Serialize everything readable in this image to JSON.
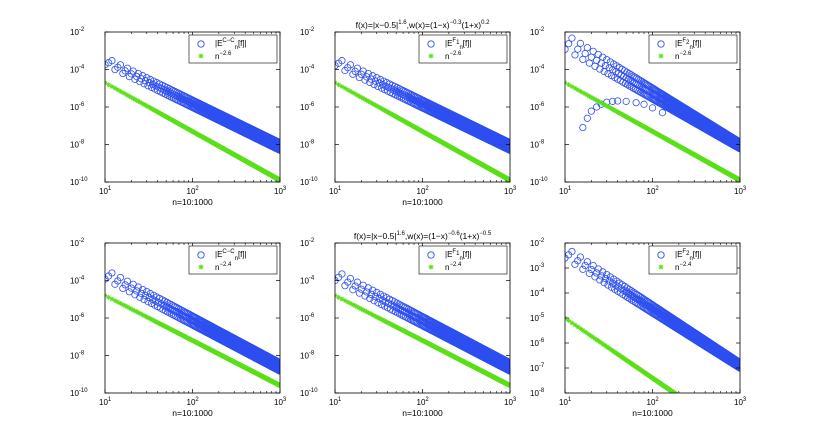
{
  "colors": {
    "series_error": "#2e4ff0",
    "series_rate": "#5be019",
    "axes": "#000000",
    "background": "#ffffff"
  },
  "chart_data": [
    {
      "type": "scatter",
      "row": 0,
      "col": 0,
      "title_parts": [],
      "xlabel": "n=10:1000",
      "x_scale": "log",
      "y_scale": "log",
      "xlim": [
        10,
        1000
      ],
      "ylim": [
        1e-10,
        0.01
      ],
      "x_ticks": [
        {
          "value": 10,
          "base": "10",
          "exp": "1"
        },
        {
          "value": 100,
          "base": "10",
          "exp": "2"
        },
        {
          "value": 1000,
          "base": "10",
          "exp": "3"
        }
      ],
      "y_ticks": [
        {
          "value": 1e-10,
          "base": "10",
          "exp": "-10"
        },
        {
          "value": 1e-08,
          "base": "10",
          "exp": "-8"
        },
        {
          "value": 1e-06,
          "base": "10",
          "exp": "-6"
        },
        {
          "value": 0.0001,
          "base": "10",
          "exp": "-4"
        },
        {
          "value": 0.01,
          "base": "10",
          "exp": "-2"
        }
      ],
      "legend_position": "top-right",
      "series": [
        {
          "name": "|E_n^{C-C}[f]|",
          "label_main": "|E",
          "label_sup": "C−C",
          "label_sub": "n",
          "label_tail": "[f]|",
          "marker": "circle",
          "color": "#2e4ff0",
          "envelope": {
            "x": [
              10,
              1000
            ],
            "upper": [
              0.00045,
              1.2e-08
            ],
            "lower": [
              0.00018,
              5e-09
            ]
          }
        },
        {
          "name": "n^{-2.6}",
          "label_main": "n",
          "label_sup": "−2.6",
          "marker": "star",
          "color": "#5be019",
          "exponent": -2.6,
          "coef": 0.0079
        }
      ]
    },
    {
      "type": "scatter",
      "row": 0,
      "col": 1,
      "title_parts": [
        "f(x)=|x−0.5|",
        "1.6",
        ",w(x)=(1−x)",
        "−0.3",
        "(1+x)",
        "0.2"
      ],
      "xlabel": "n=10:1000",
      "x_scale": "log",
      "y_scale": "log",
      "xlim": [
        10,
        1000
      ],
      "ylim": [
        1e-10,
        0.01
      ],
      "x_ticks": [
        {
          "value": 10,
          "base": "10",
          "exp": "1"
        },
        {
          "value": 100,
          "base": "10",
          "exp": "2"
        },
        {
          "value": 1000,
          "base": "10",
          "exp": "3"
        }
      ],
      "y_ticks": [
        {
          "value": 1e-10,
          "base": "10",
          "exp": "-10"
        },
        {
          "value": 1e-08,
          "base": "10",
          "exp": "-8"
        },
        {
          "value": 1e-06,
          "base": "10",
          "exp": "-6"
        },
        {
          "value": 0.0001,
          "base": "10",
          "exp": "-4"
        },
        {
          "value": 0.01,
          "base": "10",
          "exp": "-2"
        }
      ],
      "legend_position": "top-right",
      "series": [
        {
          "name": "|E_n^{F_1}[f]|",
          "label_main": "|E",
          "label_sup": "F",
          "label_supsub": "1",
          "label_sub": "n",
          "label_tail": "[f]|",
          "marker": "circle",
          "color": "#2e4ff0",
          "envelope": {
            "x": [
              10,
              1000
            ],
            "upper": [
              0.00045,
              1.2e-08
            ],
            "lower": [
              0.00016,
              5e-09
            ]
          }
        },
        {
          "name": "n^{-2.6}",
          "label_main": "n",
          "label_sup": "−2.6",
          "marker": "star",
          "color": "#5be019",
          "exponent": -2.6,
          "coef": 0.0079
        }
      ]
    },
    {
      "type": "scatter",
      "row": 0,
      "col": 2,
      "title_parts": [],
      "xlabel": "",
      "x_scale": "log",
      "y_scale": "log",
      "xlim": [
        10,
        1000
      ],
      "ylim": [
        1e-10,
        0.01
      ],
      "x_ticks": [
        {
          "value": 10,
          "base": "10",
          "exp": "1"
        },
        {
          "value": 100,
          "base": "10",
          "exp": "2"
        },
        {
          "value": 1000,
          "base": "10",
          "exp": "3"
        }
      ],
      "y_ticks": [
        {
          "value": 1e-10,
          "base": "10",
          "exp": "-10"
        },
        {
          "value": 1e-08,
          "base": "10",
          "exp": "-8"
        },
        {
          "value": 1e-06,
          "base": "10",
          "exp": "-6"
        },
        {
          "value": 0.0001,
          "base": "10",
          "exp": "-4"
        },
        {
          "value": 0.01,
          "base": "10",
          "exp": "-2"
        }
      ],
      "legend_position": "top-right",
      "series": [
        {
          "name": "|E_n^{F_2}[f]|",
          "label_main": "|E",
          "label_sup": "F",
          "label_supsub": "2",
          "label_sub": "n",
          "label_tail": "[f]|",
          "marker": "circle",
          "color": "#2e4ff0",
          "envelope": {
            "x": [
              10,
              1000
            ],
            "upper": [
              0.008,
              1.3e-08
            ],
            "lower": [
              0.0012,
              6e-09
            ]
          },
          "dip": {
            "x": [
              16,
              18,
              20,
              23,
              26,
              30,
              35,
              40,
              50,
              65,
              80,
              100,
              130
            ],
            "y": [
              8e-08,
              2.5e-07,
              6e-07,
              1e-06,
              1.4e-06,
              1.8e-06,
              2e-06,
              2.1e-06,
              2e-06,
              1.7e-06,
              1.4e-06,
              9e-07,
              5e-07
            ]
          }
        },
        {
          "name": "n^{-2.6}",
          "label_main": "n",
          "label_sup": "−2.6",
          "marker": "star",
          "color": "#5be019",
          "exponent": -2.6,
          "coef": 0.0079
        }
      ]
    },
    {
      "type": "scatter",
      "row": 1,
      "col": 0,
      "title_parts": [],
      "xlabel": "n=10:1000",
      "x_scale": "log",
      "y_scale": "log",
      "xlim": [
        10,
        1000
      ],
      "ylim": [
        1e-10,
        0.01
      ],
      "x_ticks": [
        {
          "value": 10,
          "base": "10",
          "exp": "1"
        },
        {
          "value": 100,
          "base": "10",
          "exp": "2"
        },
        {
          "value": 1000,
          "base": "10",
          "exp": "3"
        }
      ],
      "y_ticks": [
        {
          "value": 1e-10,
          "base": "10",
          "exp": "-10"
        },
        {
          "value": 1e-08,
          "base": "10",
          "exp": "-8"
        },
        {
          "value": 1e-06,
          "base": "10",
          "exp": "-6"
        },
        {
          "value": 0.0001,
          "base": "10",
          "exp": "-4"
        },
        {
          "value": 0.01,
          "base": "10",
          "exp": "-2"
        }
      ],
      "legend_position": "top-right",
      "series": [
        {
          "name": "|E_n^{C-C}[f]|",
          "label_main": "|E",
          "label_sup": "C−C",
          "label_sub": "n",
          "label_tail": "[f]|",
          "marker": "circle",
          "color": "#2e4ff0",
          "envelope": {
            "x": [
              10,
              1000
            ],
            "upper": [
              0.0004,
              4e-09
            ],
            "lower": [
              0.00012,
              1.5e-09
            ]
          }
        },
        {
          "name": "n^{-2.4}",
          "label_main": "n",
          "label_sup": "−2.4",
          "marker": "star",
          "color": "#5be019",
          "exponent": -2.4,
          "coef": 0.004
        }
      ]
    },
    {
      "type": "scatter",
      "row": 1,
      "col": 1,
      "title_parts": [
        "f(x)=|x−0.5|",
        "1.6",
        ",w(x)=(1−x)",
        "−0.6",
        "(1+x)",
        "−0.5"
      ],
      "xlabel": "n=10:1000",
      "x_scale": "log",
      "y_scale": "log",
      "xlim": [
        10,
        1000
      ],
      "ylim": [
        1e-10,
        0.01
      ],
      "x_ticks": [
        {
          "value": 10,
          "base": "10",
          "exp": "1"
        },
        {
          "value": 100,
          "base": "10",
          "exp": "2"
        },
        {
          "value": 1000,
          "base": "10",
          "exp": "3"
        }
      ],
      "y_ticks": [
        {
          "value": 1e-10,
          "base": "10",
          "exp": "-10"
        },
        {
          "value": 1e-08,
          "base": "10",
          "exp": "-8"
        },
        {
          "value": 1e-06,
          "base": "10",
          "exp": "-6"
        },
        {
          "value": 0.0001,
          "base": "10",
          "exp": "-4"
        },
        {
          "value": 0.01,
          "base": "10",
          "exp": "-2"
        }
      ],
      "legend_position": "top-right",
      "series": [
        {
          "name": "|E_n^{F_1}[f]|",
          "label_main": "|E",
          "label_sup": "F",
          "label_supsub": "1",
          "label_sub": "n",
          "label_tail": "[f]|",
          "marker": "circle",
          "color": "#2e4ff0",
          "envelope": {
            "x": [
              10,
              1000
            ],
            "upper": [
              0.00035,
              4e-09
            ],
            "lower": [
              0.0001,
              1.5e-09
            ]
          }
        },
        {
          "name": "n^{-2.4}",
          "label_main": "n",
          "label_sup": "−2.4",
          "marker": "star",
          "color": "#5be019",
          "exponent": -2.4,
          "coef": 0.004
        }
      ]
    },
    {
      "type": "scatter",
      "row": 1,
      "col": 2,
      "title_parts": [],
      "xlabel": "n=10:1000",
      "x_scale": "log",
      "y_scale": "log",
      "xlim": [
        10,
        1000
      ],
      "ylim": [
        1e-08,
        0.01
      ],
      "x_ticks": [
        {
          "value": 10,
          "base": "10",
          "exp": "1"
        },
        {
          "value": 100,
          "base": "10",
          "exp": "2"
        },
        {
          "value": 1000,
          "base": "10",
          "exp": "3"
        }
      ],
      "y_ticks": [
        {
          "value": 1e-08,
          "base": "10",
          "exp": "-8"
        },
        {
          "value": 1e-07,
          "base": "10",
          "exp": "-7"
        },
        {
          "value": 1e-06,
          "base": "10",
          "exp": "-6"
        },
        {
          "value": 1e-05,
          "base": "10",
          "exp": "-5"
        },
        {
          "value": 0.0001,
          "base": "10",
          "exp": "-4"
        },
        {
          "value": 0.001,
          "base": "10",
          "exp": "-3"
        },
        {
          "value": 0.01,
          "base": "10",
          "exp": "-2"
        }
      ],
      "legend_position": "top-right",
      "series": [
        {
          "name": "|E_n^{F_2}[f]|",
          "label_main": "|E",
          "label_sup": "F",
          "label_supsub": "2",
          "label_sub": "n",
          "label_tail": "[f]|",
          "marker": "circle",
          "color": "#2e4ff0",
          "envelope": {
            "x": [
              10,
              1000
            ],
            "upper": [
              0.007,
              1.6e-07
            ],
            "lower": [
              0.0025,
              1e-07
            ]
          }
        },
        {
          "name": "n^{-2.4}",
          "label_main": "n",
          "label_sup": "−2.4",
          "marker": "star",
          "color": "#5be019",
          "exponent": -2.4,
          "coef": 0.0025
        }
      ]
    }
  ]
}
